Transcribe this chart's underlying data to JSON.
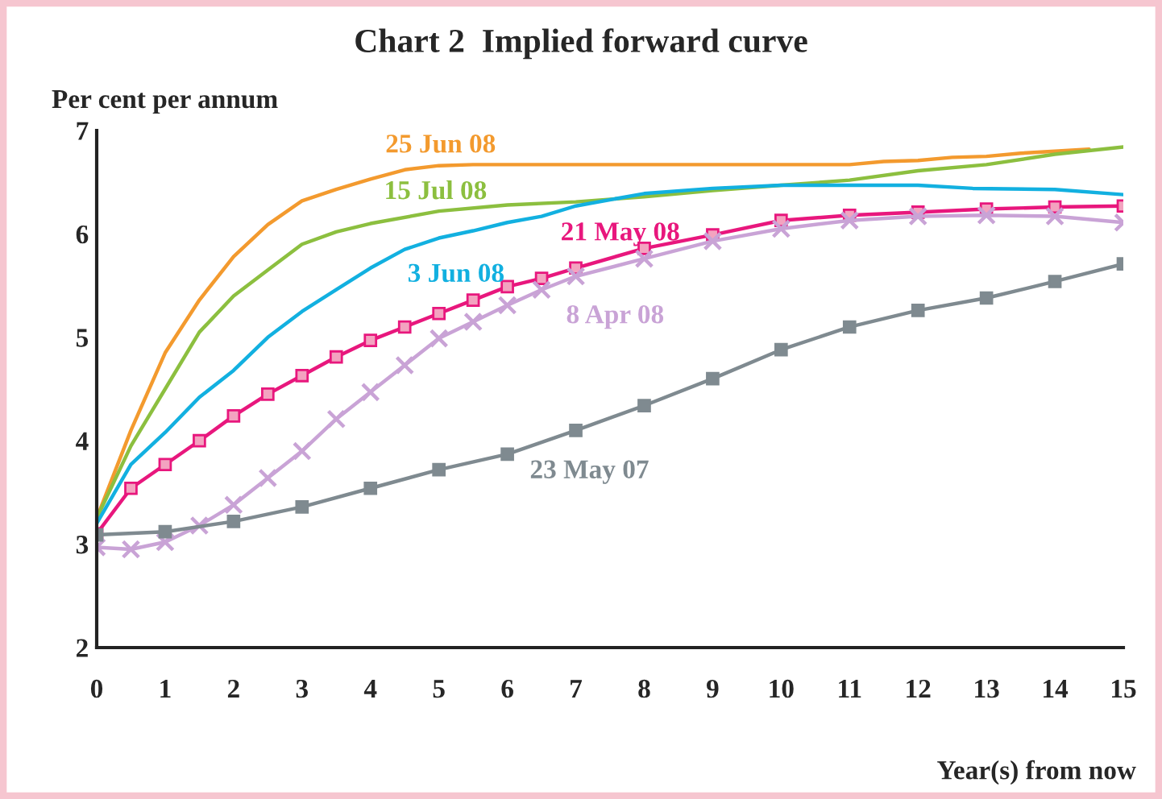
{
  "chart_data": {
    "type": "line",
    "title": "Chart 2  Implied forward curve",
    "ylabel": "Per cent per annum",
    "xlabel": "Year(s) from now",
    "xlim": [
      0,
      15
    ],
    "xticks": [
      0,
      1,
      2,
      3,
      4,
      5,
      6,
      7,
      8,
      9,
      10,
      11,
      12,
      13,
      14,
      15
    ],
    "ylim": [
      2,
      7
    ],
    "yticks": [
      2,
      3,
      4,
      5,
      6,
      7
    ],
    "grid": false,
    "legend": false,
    "series": [
      {
        "name": "25 Jun 08",
        "color": "#f39a2e",
        "marker": "none",
        "x": [
          0,
          0.5,
          1,
          1.5,
          2,
          2.5,
          3,
          3.5,
          4,
          4.5,
          5,
          5.5,
          6,
          7,
          8,
          9,
          10,
          11,
          11.5,
          12,
          12.5,
          13,
          13.5,
          14,
          14.5
        ],
        "values": [
          3.25,
          4.1,
          4.85,
          5.36,
          5.78,
          6.09,
          6.32,
          6.43,
          6.53,
          6.62,
          6.66,
          6.67,
          6.67,
          6.67,
          6.67,
          6.67,
          6.67,
          6.67,
          6.7,
          6.71,
          6.74,
          6.75,
          6.78,
          6.8,
          6.82
        ]
      },
      {
        "name": "15 Jul 08",
        "color": "#8cbf3f",
        "marker": "none",
        "x": [
          0,
          0.5,
          1,
          1.5,
          2,
          2.5,
          3,
          3.5,
          4,
          5,
          6,
          7,
          8,
          9,
          10,
          11,
          12,
          13,
          14,
          15
        ],
        "values": [
          3.25,
          3.95,
          4.5,
          5.05,
          5.4,
          5.65,
          5.9,
          6.02,
          6.1,
          6.22,
          6.28,
          6.31,
          6.36,
          6.42,
          6.47,
          6.52,
          6.61,
          6.67,
          6.77,
          6.84
        ]
      },
      {
        "name": "3 Jun 08",
        "color": "#12b0e0",
        "marker": "none",
        "x": [
          0,
          0.5,
          1,
          1.5,
          2,
          2.5,
          3,
          3.5,
          4,
          4.5,
          5,
          5.5,
          6,
          6.5,
          7,
          8,
          9,
          10,
          11,
          12,
          12.8,
          14,
          15
        ],
        "values": [
          3.2,
          3.77,
          4.08,
          4.42,
          4.68,
          5.0,
          5.25,
          5.46,
          5.67,
          5.85,
          5.96,
          6.03,
          6.11,
          6.17,
          6.27,
          6.39,
          6.44,
          6.47,
          6.47,
          6.47,
          6.44,
          6.43,
          6.38
        ]
      },
      {
        "name": "21 May 08",
        "color": "#e8177d",
        "marker": "square",
        "x": [
          0,
          0.5,
          1,
          1.5,
          2,
          2.5,
          3,
          3.5,
          4,
          4.5,
          5,
          5.5,
          6,
          6.5,
          7,
          8,
          9,
          10,
          11,
          12,
          13,
          14,
          15
        ],
        "values": [
          3.1,
          3.54,
          3.77,
          4.0,
          4.24,
          4.45,
          4.63,
          4.81,
          4.97,
          5.1,
          5.23,
          5.36,
          5.49,
          5.57,
          5.67,
          5.86,
          5.99,
          6.13,
          6.18,
          6.21,
          6.24,
          6.26,
          6.27
        ]
      },
      {
        "name": "8 Apr 08",
        "color": "#c9a3d6",
        "marker": "cross",
        "x": [
          0,
          0.5,
          1,
          1.5,
          2,
          2.5,
          3,
          3.5,
          4,
          4.5,
          5,
          5.5,
          6,
          6.5,
          7,
          8,
          9,
          10,
          11,
          12,
          13,
          14,
          15
        ],
        "values": [
          2.97,
          2.95,
          3.02,
          3.18,
          3.38,
          3.64,
          3.9,
          4.21,
          4.47,
          4.73,
          4.99,
          5.15,
          5.31,
          5.46,
          5.59,
          5.76,
          5.93,
          6.05,
          6.13,
          6.17,
          6.18,
          6.17,
          6.11
        ]
      },
      {
        "name": "23 May 07",
        "color": "#7f8a90",
        "marker": "square",
        "x": [
          0,
          1,
          2,
          3,
          4,
          5,
          6,
          7,
          8,
          9,
          10,
          11,
          12,
          13,
          14,
          15
        ],
        "values": [
          3.09,
          3.12,
          3.22,
          3.36,
          3.54,
          3.72,
          3.87,
          4.1,
          4.34,
          4.6,
          4.88,
          5.1,
          5.26,
          5.38,
          5.54,
          5.71
        ]
      }
    ]
  }
}
